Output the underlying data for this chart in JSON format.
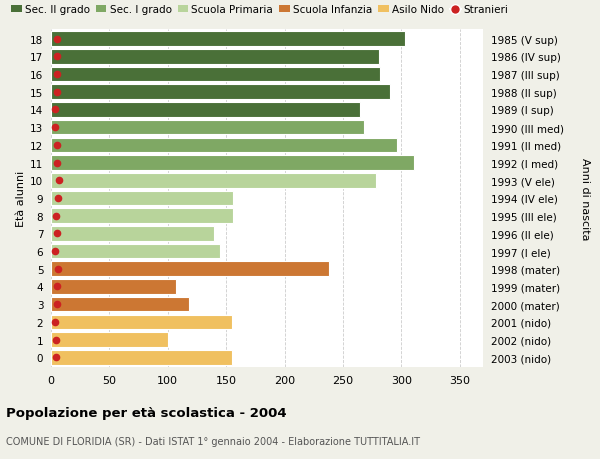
{
  "ages": [
    18,
    17,
    16,
    15,
    14,
    13,
    12,
    11,
    10,
    9,
    8,
    7,
    6,
    5,
    4,
    3,
    2,
    1,
    0
  ],
  "values": [
    303,
    281,
    282,
    290,
    265,
    268,
    296,
    311,
    278,
    156,
    156,
    140,
    145,
    238,
    107,
    118,
    155,
    100,
    155
  ],
  "stranieri": [
    5,
    5,
    5,
    5,
    3,
    3,
    5,
    5,
    7,
    6,
    4,
    5,
    3,
    6,
    5,
    5,
    3,
    4,
    4
  ],
  "right_labels": [
    "1985 (V sup)",
    "1986 (IV sup)",
    "1987 (III sup)",
    "1988 (II sup)",
    "1989 (I sup)",
    "1990 (III med)",
    "1991 (II med)",
    "1992 (I med)",
    "1993 (V ele)",
    "1994 (IV ele)",
    "1995 (III ele)",
    "1996 (II ele)",
    "1997 (I ele)",
    "1998 (mater)",
    "1999 (mater)",
    "2000 (mater)",
    "2001 (nido)",
    "2002 (nido)",
    "2003 (nido)"
  ],
  "bar_colors": [
    "#4a7038",
    "#4a7038",
    "#4a7038",
    "#4a7038",
    "#4a7038",
    "#7fa864",
    "#7fa864",
    "#7fa864",
    "#b8d49b",
    "#b8d49b",
    "#b8d49b",
    "#b8d49b",
    "#b8d49b",
    "#cc7733",
    "#cc7733",
    "#cc7733",
    "#f0c060",
    "#f0c060",
    "#f0c060"
  ],
  "legend_labels": [
    "Sec. II grado",
    "Sec. I grado",
    "Scuola Primaria",
    "Scuola Infanzia",
    "Asilo Nido",
    "Stranieri"
  ],
  "legend_colors": [
    "#4a7038",
    "#7fa864",
    "#b8d49b",
    "#cc7733",
    "#f0c060",
    "#cc2222"
  ],
  "stranieri_color": "#cc2222",
  "title1": "Popolazione per età scolastica - 2004",
  "title2": "COMUNE DI FLORIDIA (SR) - Dati ISTAT 1° gennaio 2004 - Elaborazione TUTTITALIA.IT",
  "ylabel_left": "Età alunni",
  "ylabel_right": "Anni di nascita",
  "xlim": [
    0,
    370
  ],
  "xticks": [
    0,
    50,
    100,
    150,
    200,
    250,
    300,
    350
  ],
  "bg_color": "#f0f0e8",
  "plot_bg_color": "#ffffff",
  "grid_color": "#cccccc"
}
